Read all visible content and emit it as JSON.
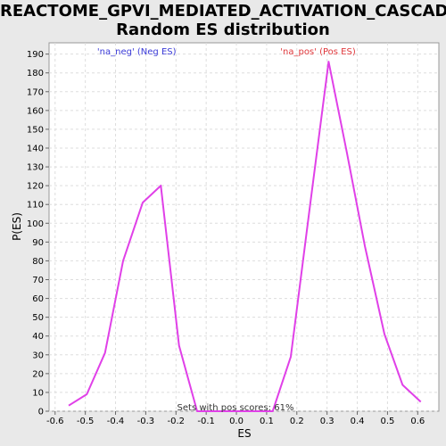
{
  "chart_data": {
    "type": "line",
    "title_line1": "REACTOME_GPVI_MEDIATED_ACTIVATION_CASCADE:",
    "title_line2": "Random ES distribution",
    "xlabel": "ES",
    "ylabel": "P(ES)",
    "xlim": [
      -0.62,
      0.67
    ],
    "ylim": [
      0,
      196
    ],
    "x_ticks": [
      -0.6,
      -0.5,
      -0.4,
      -0.3,
      -0.2,
      -0.1,
      0.0,
      0.1,
      0.2,
      0.3,
      0.4,
      0.5,
      0.6
    ],
    "x_tick_labels": [
      "-0.6",
      "-0.5",
      "-0.4",
      "-0.3",
      "-0.2",
      "-0.1",
      "0.0",
      "0.1",
      "0.2",
      "0.3",
      "0.4",
      "0.5",
      "0.6"
    ],
    "y_ticks": [
      0,
      10,
      20,
      30,
      40,
      50,
      60,
      70,
      80,
      90,
      100,
      110,
      120,
      130,
      140,
      150,
      160,
      170,
      180,
      190
    ],
    "grid": true,
    "line_color": "#e040e8",
    "legend": [
      {
        "label": "'na_neg' (Neg ES)",
        "color": "#3b3bd8",
        "x": -0.33
      },
      {
        "label": "'na_pos' (Pos ES)",
        "color": "#e0383c",
        "x": 0.27
      }
    ],
    "annotation": "Sets with pos scores: 61%",
    "series": [
      {
        "x": [
          -0.555,
          -0.495,
          -0.435,
          -0.375,
          -0.31,
          -0.25,
          -0.19,
          -0.13,
          0.0,
          0.12,
          0.18,
          0.245,
          0.305,
          0.365,
          0.425,
          0.49,
          0.55,
          0.61
        ],
        "y": [
          3,
          9,
          31,
          80,
          111,
          120,
          35,
          0,
          0,
          0,
          29,
          111,
          186,
          138,
          88,
          41,
          14,
          5
        ]
      }
    ]
  }
}
